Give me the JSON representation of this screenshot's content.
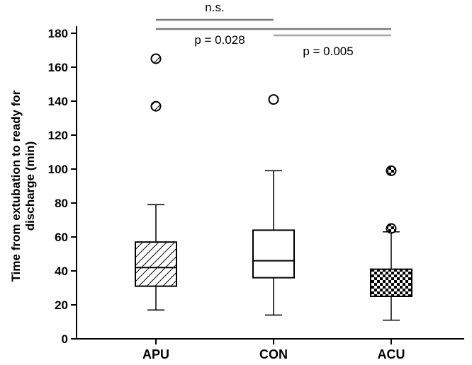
{
  "chart_data": {
    "type": "boxplot",
    "ylabel": "Time from extubation to ready for discharge (min)",
    "ylabel_lines": [
      "Time from extubation to ready for",
      "discharge (min)"
    ],
    "xlabel": "",
    "ylim": [
      0,
      180
    ],
    "yticks": [
      0,
      20,
      40,
      60,
      80,
      100,
      120,
      140,
      160,
      180
    ],
    "grid": false,
    "categories": [
      "APU",
      "CON",
      "ACU"
    ],
    "boxes": [
      {
        "name": "APU",
        "fill": "hatch",
        "whisker_low": 17,
        "q1": 31,
        "median": 42,
        "q3": 57,
        "whisker_high": 79,
        "outliers": [
          137,
          165
        ]
      },
      {
        "name": "CON",
        "fill": "white",
        "whisker_low": 14,
        "q1": 36,
        "median": 46,
        "q3": 64,
        "whisker_high": 99,
        "outliers": [
          141
        ]
      },
      {
        "name": "ACU",
        "fill": "checker",
        "whisker_low": 11,
        "q1": 25,
        "median": 25,
        "q3": 41,
        "whisker_high": 63,
        "outliers": [
          65,
          99
        ]
      }
    ],
    "comparisons": [
      {
        "from": "APU",
        "to": "CON",
        "label": "n.s.",
        "color": "#7a7a7a"
      },
      {
        "from": "APU",
        "to": "ACU",
        "label": "p = 0.028",
        "color": "#7a7a7a"
      },
      {
        "from": "CON",
        "to": "ACU",
        "label": "p = 0.005",
        "color": "#a6a6a6"
      }
    ]
  }
}
